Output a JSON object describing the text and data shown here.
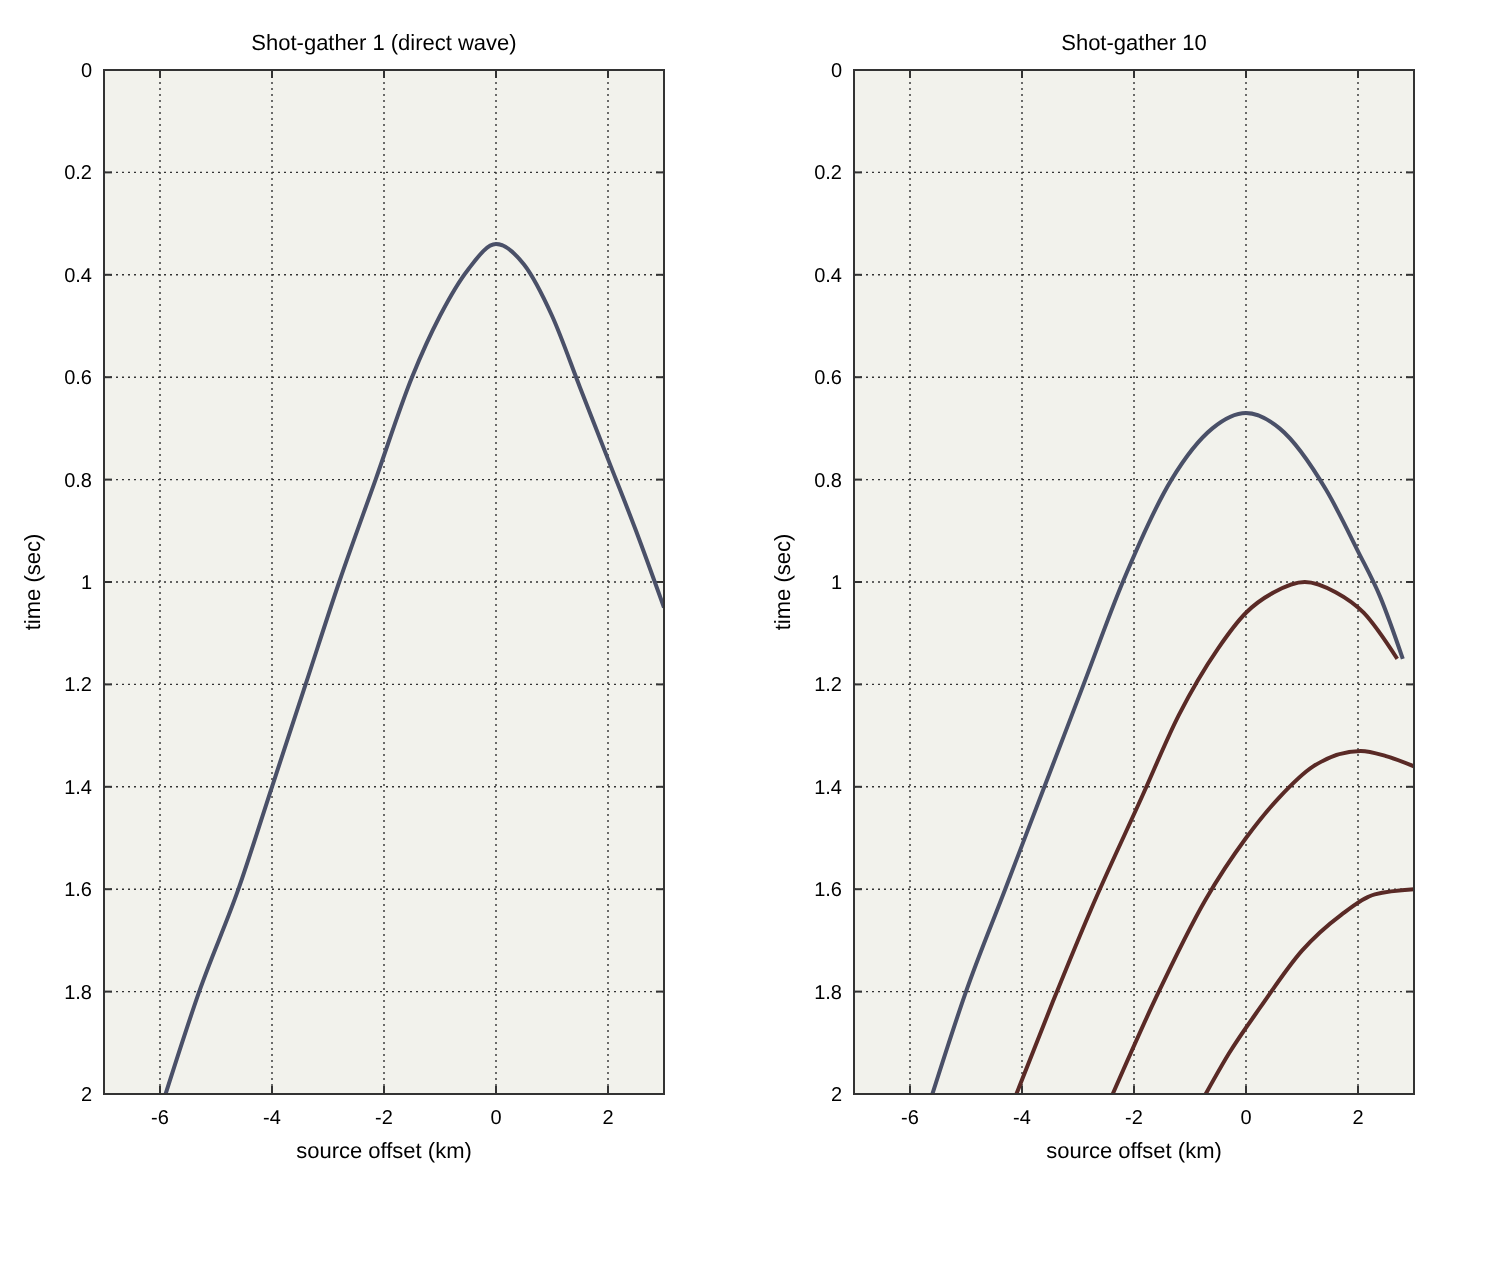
{
  "chart_data": [
    {
      "type": "line",
      "title": "Shot-gather 1 (direct wave)",
      "xlabel": "source offset (km)",
      "ylabel": "time (sec)",
      "xlim": [
        -7,
        3
      ],
      "xticks": [
        -6,
        -4,
        -2,
        0,
        2
      ],
      "ylim": [
        2,
        0
      ],
      "yticks": [
        0,
        0.2,
        0.4,
        0.6,
        0.8,
        1,
        1.2,
        1.4,
        1.6,
        1.8,
        2
      ],
      "grid": true,
      "series": [
        {
          "color": "#4a5068",
          "x": [
            -5.9,
            -5.3,
            -4.6,
            -4.0,
            -3.4,
            -2.8,
            -2.15,
            -1.5,
            -1.0,
            -0.5,
            0,
            0.5,
            1.0,
            1.5,
            2.0,
            2.5,
            3.0
          ],
          "values": [
            2.0,
            1.8,
            1.6,
            1.4,
            1.2,
            1.0,
            0.8,
            0.6,
            0.48,
            0.39,
            0.34,
            0.38,
            0.48,
            0.62,
            0.76,
            0.9,
            1.05
          ]
        }
      ]
    },
    {
      "type": "line",
      "title": "Shot-gather 10",
      "xlabel": "source offset (km)",
      "ylabel": "time (sec)",
      "xlim": [
        -7,
        3
      ],
      "xticks": [
        -6,
        -4,
        -2,
        0,
        2
      ],
      "ylim": [
        2,
        0
      ],
      "yticks": [
        0,
        0.2,
        0.4,
        0.6,
        0.8,
        1,
        1.2,
        1.4,
        1.6,
        1.8,
        2
      ],
      "grid": true,
      "series": [
        {
          "color": "#4a5068",
          "x": [
            -5.6,
            -5.0,
            -4.3,
            -3.6,
            -2.9,
            -2.2,
            -1.33,
            -0.6,
            0,
            0.6,
            1.43,
            2.0,
            2.4,
            2.8
          ],
          "values": [
            2.0,
            1.8,
            1.6,
            1.4,
            1.2,
            1.0,
            0.8,
            0.7,
            0.67,
            0.7,
            0.82,
            0.94,
            1.03,
            1.15
          ]
        },
        {
          "color": "#5a2a26",
          "x": [
            -4.1,
            -3.45,
            -2.77,
            -1.86,
            -1.2,
            -0.5,
            0,
            0.5,
            1.05,
            1.6,
            2.1,
            2.7
          ],
          "values": [
            2.0,
            1.82,
            1.64,
            1.42,
            1.26,
            1.13,
            1.06,
            1.02,
            1.0,
            1.02,
            1.06,
            1.15
          ]
        },
        {
          "color": "#5a2a26",
          "x": [
            -2.38,
            -1.6,
            -0.72,
            0,
            0.6,
            1.2,
            2.05,
            2.5,
            3.0
          ],
          "values": [
            2.0,
            1.81,
            1.62,
            1.5,
            1.42,
            1.36,
            1.33,
            1.34,
            1.36
          ]
        },
        {
          "color": "#5a2a26",
          "x": [
            -0.72,
            -0.3,
            0.26,
            1.0,
            1.7,
            2.3,
            3.0
          ],
          "values": [
            2.0,
            1.92,
            1.83,
            1.72,
            1.65,
            1.61,
            1.6
          ]
        }
      ]
    }
  ]
}
